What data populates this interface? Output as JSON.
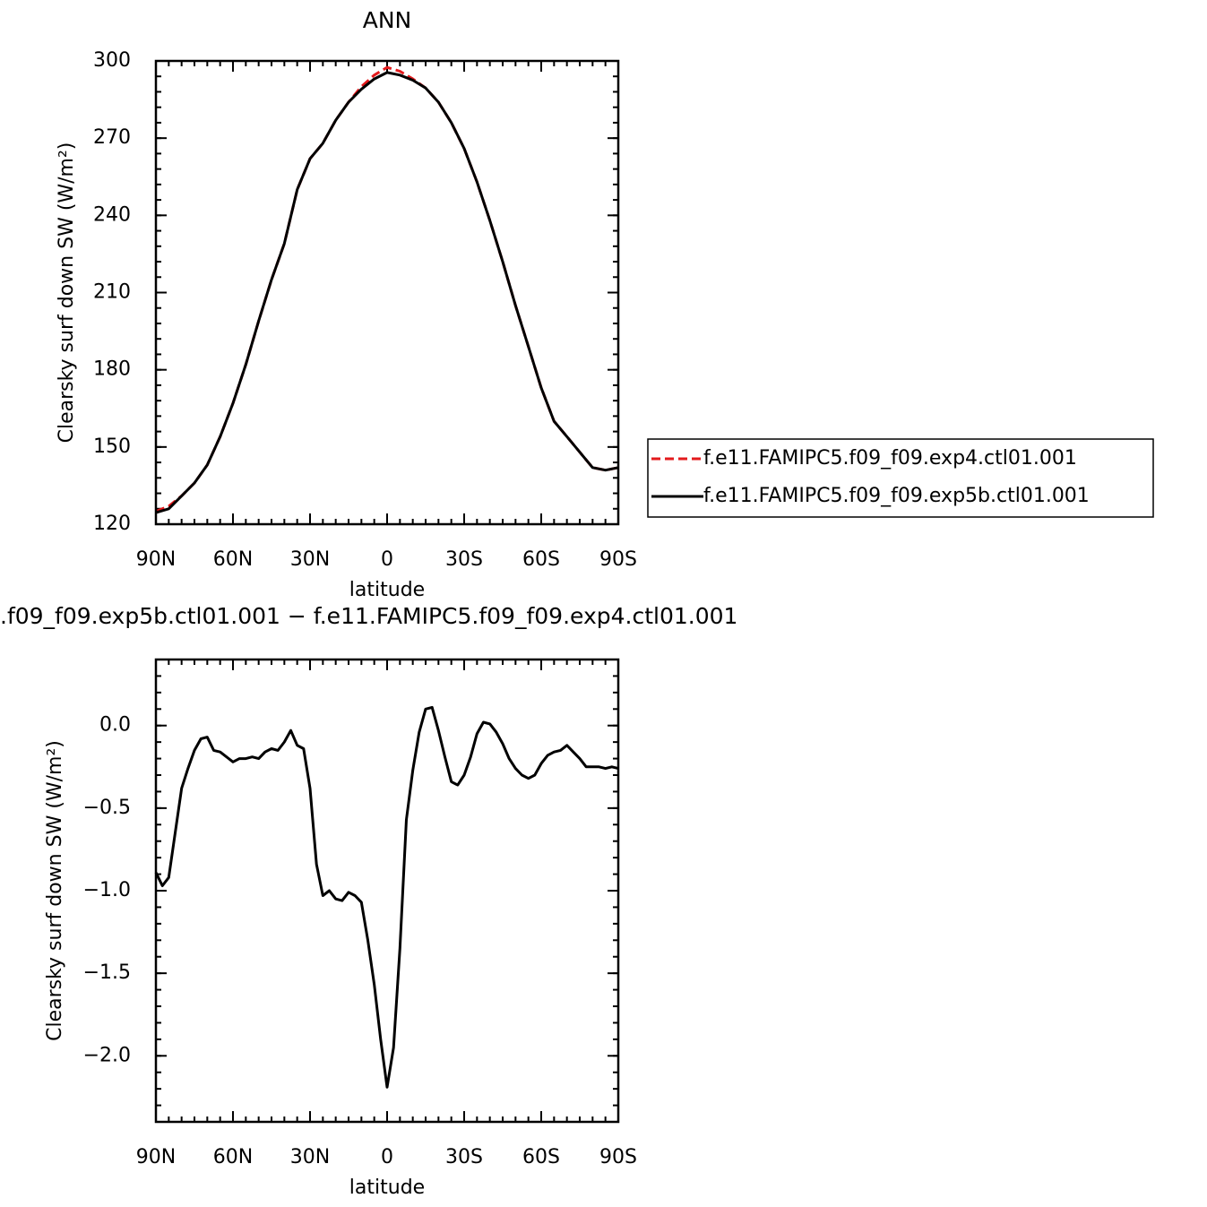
{
  "chart_data": [
    {
      "type": "line",
      "title": "ANN",
      "xlabel": "latitude",
      "ylabel": "Clearsky surf down SW (W/m²)",
      "x": [
        90,
        85,
        80,
        75,
        70,
        65,
        60,
        55,
        50,
        45,
        40,
        35,
        30,
        25,
        20,
        15,
        10,
        5,
        0,
        -5,
        -10,
        -15,
        -20,
        -25,
        -30,
        -35,
        -40,
        -45,
        -50,
        -55,
        -60,
        -65,
        -70,
        -75,
        -80,
        -85,
        -90
      ],
      "xlim": [
        90,
        -90
      ],
      "xticks": [
        {
          "value": 90,
          "label": "90N"
        },
        {
          "value": 60,
          "label": "60N"
        },
        {
          "value": 30,
          "label": "30N"
        },
        0,
        {
          "value": -30,
          "label": "30S"
        },
        {
          "value": -60,
          "label": "60S"
        },
        {
          "value": -90,
          "label": "90S"
        }
      ],
      "ylim": [
        120,
        300
      ],
      "yticks": [
        120,
        150,
        180,
        210,
        240,
        270,
        300
      ],
      "legend": "right",
      "series": [
        {
          "name": "f.e11.FAMIPC5.f09_f09.exp4.ctl01.001",
          "color": "#e31a1c",
          "dash": true,
          "values": [
            125,
            127,
            131,
            136,
            143,
            154,
            167,
            182,
            199,
            215,
            229,
            250,
            262,
            268,
            277,
            284,
            290,
            294.5,
            297.5,
            296,
            293,
            289.5,
            284,
            276,
            266,
            253,
            238,
            222,
            205,
            189,
            173,
            160,
            154,
            148,
            142,
            141,
            142
          ]
        },
        {
          "name": "f.e11.FAMIPC5.f09_f09.exp5b.ctl01.001",
          "color": "#000000",
          "dash": false,
          "values": [
            124.5,
            126,
            131,
            136,
            143,
            154,
            167,
            182,
            199,
            215,
            229,
            250,
            262,
            268,
            277,
            284,
            289,
            293,
            295.5,
            294.5,
            292.5,
            289.5,
            284,
            276,
            266,
            253,
            238,
            222,
            205,
            189,
            173,
            160,
            154,
            148,
            142,
            141,
            142
          ]
        }
      ]
    },
    {
      "type": "line",
      "title": ".f09_f09.exp5b.ctl01.001  −  f.e11.FAMIPC5.f09_f09.exp4.ctl01.001",
      "xlabel": "latitude",
      "ylabel": "Clearsky surf down SW (W/m²)",
      "x": [
        90,
        87.5,
        85,
        82.5,
        80,
        77.5,
        75,
        72.5,
        70,
        67.5,
        65,
        62.5,
        60,
        57.5,
        55,
        52.5,
        50,
        47.5,
        45,
        42.5,
        40,
        37.5,
        35,
        32.5,
        30,
        27.5,
        25,
        22.5,
        20,
        17.5,
        15,
        12.5,
        10,
        7.5,
        5,
        2.5,
        0,
        -2.5,
        -5,
        -7.5,
        -10,
        -12.5,
        -15,
        -17.5,
        -20,
        -22.5,
        -25,
        -27.5,
        -30,
        -32.5,
        -35,
        -37.5,
        -40,
        -42.5,
        -45,
        -47.5,
        -50,
        -52.5,
        -55,
        -57.5,
        -60,
        -62.5,
        -65,
        -67.5,
        -70,
        -72.5,
        -75,
        -77.5,
        -80,
        -82.5,
        -85,
        -87.5,
        -90
      ],
      "xlim": [
        90,
        -90
      ],
      "xticks": [
        {
          "value": 90,
          "label": "90N"
        },
        {
          "value": 60,
          "label": "60N"
        },
        {
          "value": 30,
          "label": "30N"
        },
        0,
        {
          "value": -30,
          "label": "30S"
        },
        {
          "value": -60,
          "label": "60S"
        },
        {
          "value": -90,
          "label": "90S"
        }
      ],
      "ylim": [
        -2.4,
        0.4
      ],
      "yticks": [
        {
          "value": -2,
          "label": "−2.0"
        },
        {
          "value": -1.5,
          "label": "−1.5"
        },
        {
          "value": -1,
          "label": "−1.0"
        },
        {
          "value": -0.5,
          "label": "−0.5"
        },
        {
          "value": 0,
          "label": "0.0"
        }
      ],
      "series": [
        {
          "color": "#000000",
          "dash": false,
          "values": [
            -0.89,
            -0.97,
            -0.92,
            -0.65,
            -0.38,
            -0.26,
            -0.15,
            -0.08,
            -0.07,
            -0.15,
            -0.16,
            -0.19,
            -0.22,
            -0.2,
            -0.2,
            -0.19,
            -0.2,
            -0.16,
            -0.14,
            -0.15,
            -0.1,
            -0.03,
            -0.12,
            -0.14,
            -0.38,
            -0.84,
            -1.03,
            -1,
            -1.05,
            -1.06,
            -1.01,
            -1.03,
            -1.07,
            -1.3,
            -1.57,
            -1.9,
            -2.19,
            -1.95,
            -1.35,
            -0.57,
            -0.27,
            -0.04,
            0.1,
            0.11,
            -0.03,
            -0.19,
            -0.34,
            -0.36,
            -0.3,
            -0.19,
            -0.05,
            0.02,
            0.01,
            -0.04,
            -0.11,
            -0.2,
            -0.26,
            -0.3,
            -0.32,
            -0.3,
            -0.23,
            -0.18,
            -0.16,
            -0.15,
            -0.12,
            -0.16,
            -0.2,
            -0.25,
            -0.25,
            -0.25,
            -0.26,
            -0.25,
            -0.26
          ]
        }
      ]
    }
  ]
}
